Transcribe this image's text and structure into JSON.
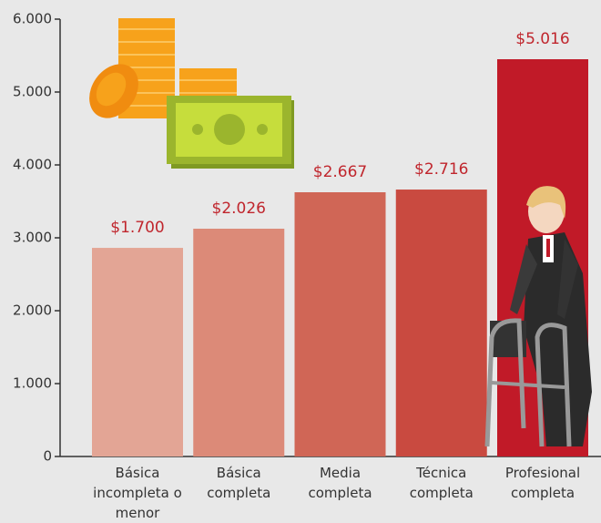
{
  "chart_data": {
    "type": "bar",
    "categories": [
      "Básica incompleta o menor",
      "Básica completa",
      "Media completa",
      "Técnica completa",
      "Profesional completa"
    ],
    "values": [
      2862,
      3125,
      3625,
      3662,
      5450
    ],
    "colors": [
      "#e3a595",
      "#dc8a78",
      "#d06656",
      "#c94a40",
      "#c11a28"
    ],
    "annotations": [
      "$1.700",
      "$2.026",
      "$2.667",
      "$2.716",
      "$5.016"
    ],
    "ylim": [
      0,
      6000
    ],
    "yticks": [
      0,
      {
        "value": 1000,
        "label": "1.000"
      },
      {
        "value": 2000,
        "label": "2.000"
      },
      {
        "value": 3000,
        "label": "3.000"
      },
      {
        "value": 4000,
        "label": "4.000"
      },
      {
        "value": 5000,
        "label": "5.000"
      },
      {
        "value": 6000,
        "label": "6.000"
      }
    ]
  }
}
